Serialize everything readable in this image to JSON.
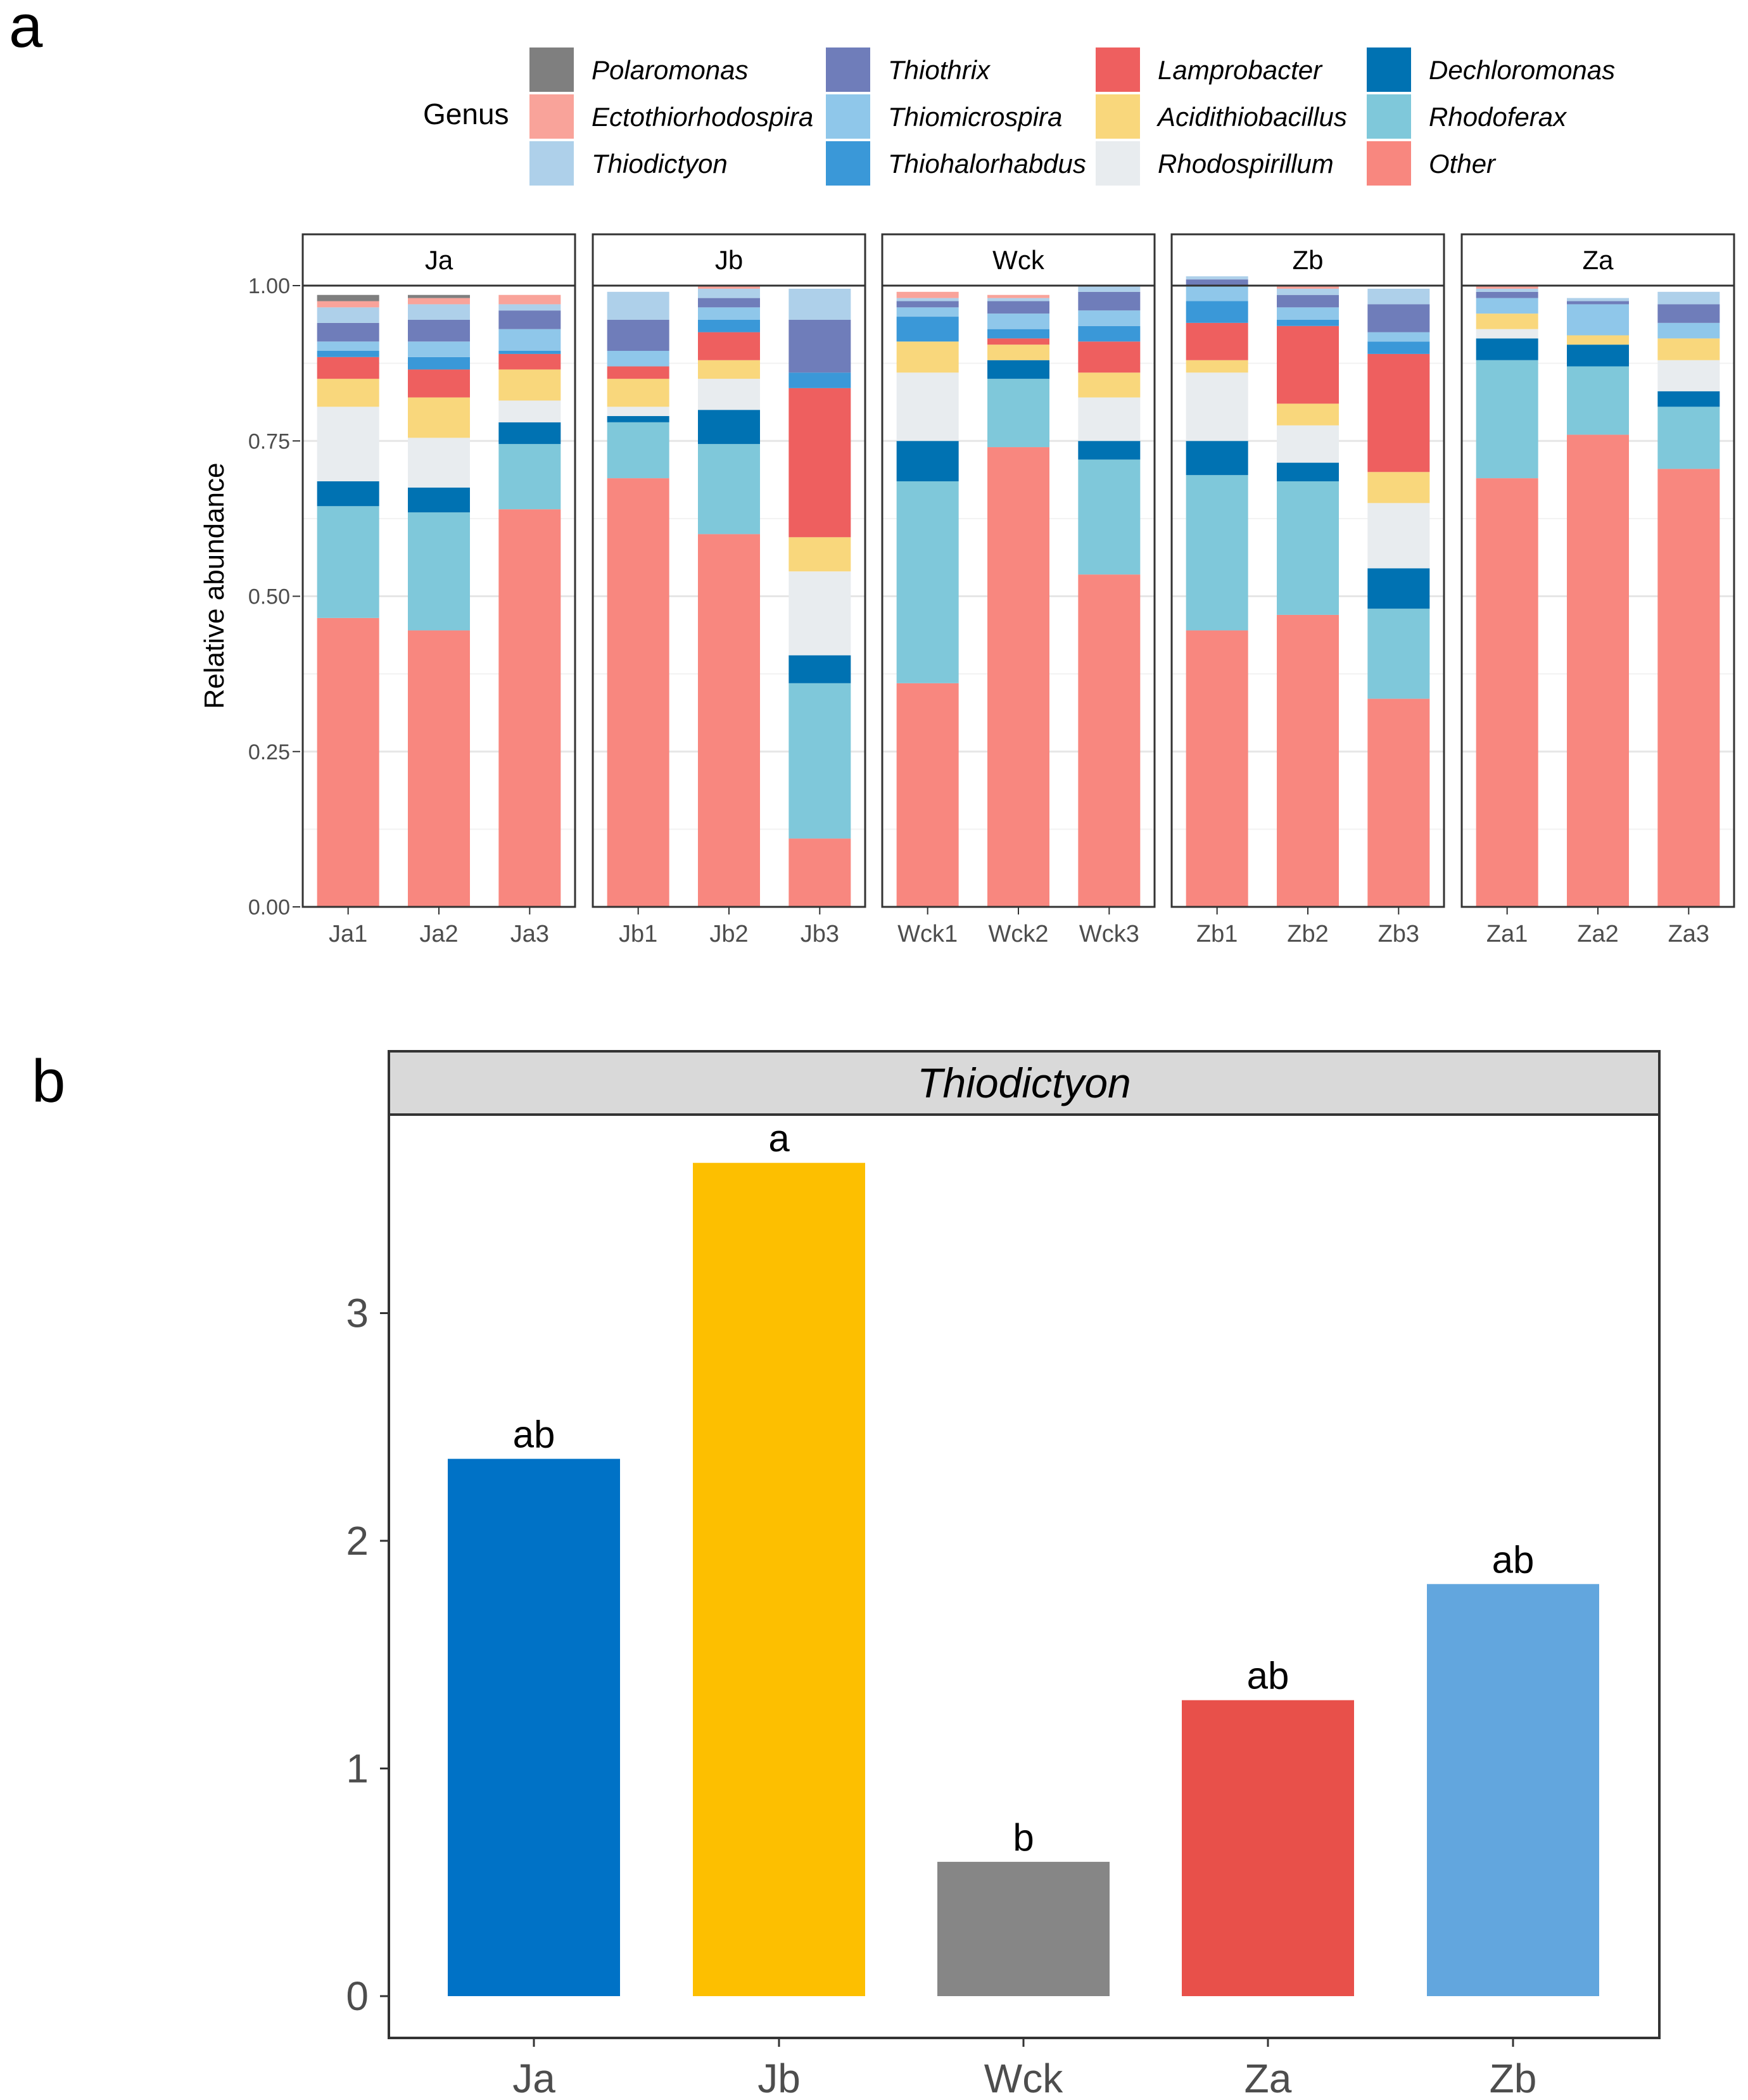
{
  "figure": {
    "panel_a_letter": "a",
    "panel_b_letter": "b"
  },
  "chart_data": [
    {
      "type": "bar",
      "stacked": true,
      "facet_labels": [
        "Ja",
        "Jb",
        "Wck",
        "Zb",
        "Za"
      ],
      "facets": [
        {
          "facet": "Ja",
          "samples": [
            "Ja1",
            "Ja2",
            "Ja3"
          ]
        },
        {
          "facet": "Jb",
          "samples": [
            "Jb1",
            "Jb2",
            "Jb3"
          ]
        },
        {
          "facet": "Wck",
          "samples": [
            "Wck1",
            "Wck2",
            "Wck3"
          ]
        },
        {
          "facet": "Zb",
          "samples": [
            "Zb1",
            "Zb2",
            "Zb3"
          ]
        },
        {
          "facet": "Za",
          "samples": [
            "Za1",
            "Za2",
            "Za3"
          ]
        }
      ],
      "legend_title": "Genus",
      "legend_position": "top",
      "ylabel": "Relative abundance",
      "ylim": [
        0,
        1
      ],
      "yticks": [
        "0.00",
        "0.25",
        "0.50",
        "0.75",
        "1.00"
      ],
      "grid": true,
      "categories": [
        "Ja1",
        "Ja2",
        "Ja3",
        "Jb1",
        "Jb2",
        "Jb3",
        "Wck1",
        "Wck2",
        "Wck3",
        "Zb1",
        "Zb2",
        "Zb3",
        "Za1",
        "Za2",
        "Za3"
      ],
      "series": [
        {
          "name": "Other",
          "color": "#F8877F",
          "values": [
            0.465,
            0.445,
            0.64,
            0.69,
            0.6,
            0.11,
            0.36,
            0.74,
            0.535,
            0.445,
            0.47,
            0.335,
            0.69,
            0.76,
            0.705
          ]
        },
        {
          "name": "Rhodoferax",
          "color": "#7FC8DA",
          "values": [
            0.18,
            0.19,
            0.105,
            0.09,
            0.145,
            0.25,
            0.325,
            0.11,
            0.185,
            0.25,
            0.215,
            0.145,
            0.19,
            0.11,
            0.1
          ]
        },
        {
          "name": "Dechloromonas",
          "color": "#0072B2",
          "values": [
            0.04,
            0.04,
            0.035,
            0.01,
            0.055,
            0.045,
            0.065,
            0.03,
            0.03,
            0.055,
            0.03,
            0.065,
            0.035,
            0.035,
            0.025
          ]
        },
        {
          "name": "Rhodospirillum",
          "color": "#E8ECEF",
          "values": [
            0.12,
            0.08,
            0.035,
            0.015,
            0.05,
            0.135,
            0.11,
            0.0,
            0.07,
            0.11,
            0.06,
            0.105,
            0.015,
            0.0,
            0.05
          ]
        },
        {
          "name": "Acidithiobacillus",
          "color": "#F9D77C",
          "values": [
            0.045,
            0.065,
            0.05,
            0.045,
            0.03,
            0.055,
            0.05,
            0.025,
            0.04,
            0.02,
            0.035,
            0.05,
            0.025,
            0.015,
            0.035
          ]
        },
        {
          "name": "Lamprobacter",
          "color": "#EE5F5F",
          "values": [
            0.035,
            0.045,
            0.025,
            0.02,
            0.045,
            0.24,
            0.0,
            0.01,
            0.05,
            0.06,
            0.125,
            0.19,
            0.0,
            0.0,
            0.0
          ]
        },
        {
          "name": "Thiohalorhabdus",
          "color": "#3A98D8",
          "values": [
            0.01,
            0.02,
            0.005,
            0.0,
            0.02,
            0.025,
            0.04,
            0.015,
            0.025,
            0.035,
            0.01,
            0.02,
            0.0,
            0.0,
            0.0
          ]
        },
        {
          "name": "Thiomicrospira",
          "color": "#8FC7EA",
          "values": [
            0.015,
            0.025,
            0.035,
            0.025,
            0.02,
            0.0,
            0.015,
            0.025,
            0.025,
            0.025,
            0.02,
            0.015,
            0.025,
            0.05,
            0.025
          ]
        },
        {
          "name": "Thiothrix",
          "color": "#6F7DBA",
          "values": [
            0.03,
            0.035,
            0.03,
            0.05,
            0.015,
            0.085,
            0.01,
            0.02,
            0.03,
            0.01,
            0.02,
            0.045,
            0.01,
            0.005,
            0.03
          ]
        },
        {
          "name": "Thiodictyon",
          "color": "#AED0EA",
          "values": [
            0.025,
            0.025,
            0.01,
            0.045,
            0.015,
            0.05,
            0.005,
            0.005,
            0.01,
            0.005,
            0.01,
            0.025,
            0.005,
            0.005,
            0.02
          ]
        },
        {
          "name": "Ectothiorhodospira",
          "color": "#F9A39A",
          "values": [
            0.01,
            0.01,
            0.015,
            0.0,
            0.005,
            0.0,
            0.01,
            0.005,
            0.0,
            0.0,
            0.005,
            0.0,
            0.005,
            0.0,
            0.0
          ]
        },
        {
          "name": "Polaromonas",
          "color": "#7F7F7F",
          "values": [
            0.01,
            0.005,
            0.0,
            0.0,
            0.0,
            0.0,
            0.0,
            0.0,
            0.0,
            0.0,
            0.0,
            0.0,
            0.0,
            0.0,
            0.0
          ]
        }
      ],
      "legend_entries": [
        {
          "name": "Polaromonas",
          "color": "#7F7F7F"
        },
        {
          "name": "Ectothiorhodospira",
          "color": "#F9A39A"
        },
        {
          "name": "Thiodictyon",
          "color": "#AED0EA"
        },
        {
          "name": "Thiothrix",
          "color": "#6F7DBA"
        },
        {
          "name": "Thiomicrospira",
          "color": "#8FC7EA"
        },
        {
          "name": "Thiohalorhabdus",
          "color": "#3A98D8"
        },
        {
          "name": "Lamprobacter",
          "color": "#EE5F5F"
        },
        {
          "name": "Acidithiobacillus",
          "color": "#F9D77C"
        },
        {
          "name": "Rhodospirillum",
          "color": "#E8ECEF"
        },
        {
          "name": "Dechloromonas",
          "color": "#0072B2"
        },
        {
          "name": "Rhodoferax",
          "color": "#7FC8DA"
        },
        {
          "name": "Other",
          "color": "#F8877F"
        }
      ]
    },
    {
      "type": "bar",
      "title": "Thiodictyon",
      "categories": [
        "Ja",
        "Jb",
        "Wck",
        "Za",
        "Zb"
      ],
      "values": [
        2.36,
        3.66,
        0.59,
        1.3,
        1.81
      ],
      "sig_labels": [
        "ab",
        "a",
        "b",
        "ab",
        "ab"
      ],
      "colors": [
        "#0072C6",
        "#FDBF00",
        "#868686",
        "#E8504A",
        "#62A6DE"
      ],
      "ylim": [
        0,
        3.9
      ],
      "yticks": [
        "0",
        "1",
        "2",
        "3"
      ],
      "xlabel": "",
      "ylabel": "",
      "grid": false
    }
  ]
}
